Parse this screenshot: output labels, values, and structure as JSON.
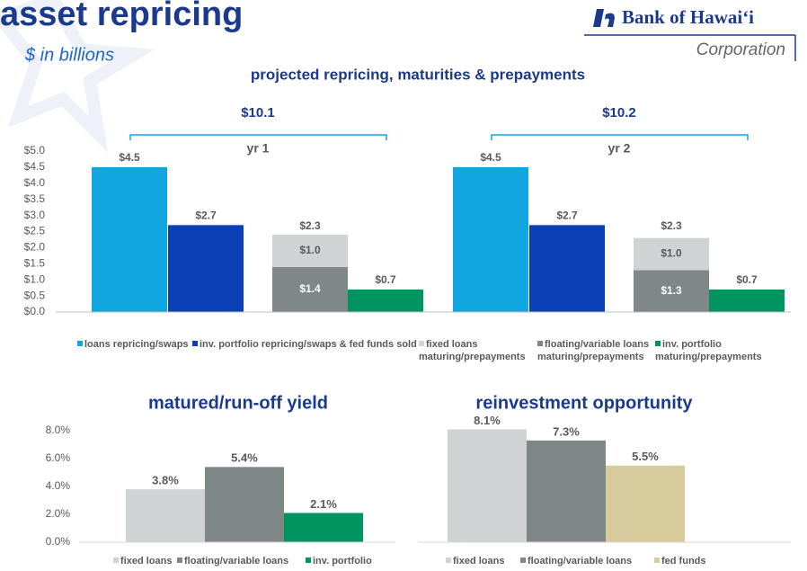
{
  "header": {
    "title": "asset repricing",
    "subtitle": "$ in billions",
    "logo": "Bank of Hawaiʻi",
    "logo_sub": "Corporation"
  },
  "chart_data": [
    {
      "type": "bar",
      "title": "projected repricing, maturities & prepayments",
      "categories": [
        "yr 1",
        "yr 2"
      ],
      "group_totals": [
        "$10.1",
        "$10.2"
      ],
      "series": [
        {
          "name": "loans repricing/swaps",
          "color": "#12a6e0",
          "values": [
            4.5,
            4.5
          ],
          "value_labels": [
            "$4.5",
            "$4.5"
          ]
        },
        {
          "name": "inv. portfolio repricing/swaps & fed funds sold",
          "color": "#0a40b4",
          "values": [
            2.7,
            2.7
          ],
          "value_labels": [
            "$2.7",
            "$2.7"
          ]
        },
        {
          "name": "fixed loans maturing/prepayments",
          "color": "#d0d3d4",
          "values": [
            1.0,
            1.0
          ],
          "value_labels": [
            "$1.0",
            "$1.0"
          ]
        },
        {
          "name": "floating/variable loans maturing/prepayments",
          "color": "#7f8788",
          "values": [
            1.4,
            1.3
          ],
          "value_labels": [
            "$1.4",
            "$1.3"
          ]
        },
        {
          "name": "inv. portfolio maturing/prepayments",
          "color": "#009460",
          "values": [
            0.7,
            0.7
          ],
          "value_labels": [
            "$0.7",
            "$0.7"
          ]
        }
      ],
      "total_labels": [
        {
          "value": 2.3,
          "label": "$2.3"
        },
        {
          "value": 2.3,
          "label": "$2.3"
        }
      ],
      "ylim": [
        0,
        5
      ],
      "yticks": [
        {
          "value": 0,
          "label": "$0.0"
        },
        {
          "value": 0.5,
          "label": "$0.5"
        },
        {
          "value": 1,
          "label": "$1.0"
        },
        {
          "value": 1.5,
          "label": "$1.5"
        },
        {
          "value": 2,
          "label": "$2.0"
        },
        {
          "value": 2.5,
          "label": "$2.5"
        },
        {
          "value": 3,
          "label": "$3.0"
        },
        {
          "value": 3.5,
          "label": "$3.5"
        },
        {
          "value": 4,
          "label": "$4.0"
        },
        {
          "value": 4.5,
          "label": "$4.5"
        },
        {
          "value": 5,
          "label": "$5.0"
        }
      ]
    },
    {
      "type": "bar",
      "title": "matured/run-off yield",
      "categories": [
        "fixed loans",
        "floating/variable loans",
        "inv. portfolio"
      ],
      "values": [
        3.8,
        5.4,
        2.1
      ],
      "value_labels": [
        "3.8%",
        "5.4%",
        "2.1%"
      ],
      "colors": [
        "#d0d3d4",
        "#7f8788",
        "#009460"
      ],
      "ylim": [
        0,
        8
      ],
      "yticks": [
        {
          "value": 0,
          "label": "0.0%"
        },
        {
          "value": 2,
          "label": "2.0%"
        },
        {
          "value": 4,
          "label": "4.0%"
        },
        {
          "value": 6,
          "label": "6.0%"
        },
        {
          "value": 8,
          "label": "8.0%"
        }
      ]
    },
    {
      "type": "bar",
      "title": "reinvestment opportunity",
      "categories": [
        "fixed loans",
        "floating/variable loans",
        "fed funds"
      ],
      "values": [
        8.1,
        7.3,
        5.5
      ],
      "value_labels": [
        "8.1%",
        "7.3%",
        "5.5%"
      ],
      "colors": [
        "#d0d3d4",
        "#7f8788",
        "#d8cc9c"
      ],
      "ylim": [
        0,
        8
      ]
    }
  ]
}
